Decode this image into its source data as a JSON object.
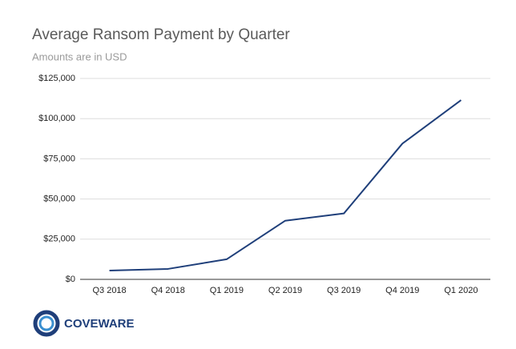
{
  "chart_data": {
    "type": "line",
    "title": "Average Ransom Payment by Quarter",
    "subtitle": "Amounts are in USD",
    "categories": [
      "Q3 2018",
      "Q4 2018",
      "Q1 2019",
      "Q2 2019",
      "Q3 2019",
      "Q4 2019",
      "Q1 2020"
    ],
    "series": [
      {
        "name": "Average Ransom Payment",
        "color": "#1f3f7a",
        "values": [
          5500,
          6500,
          12500,
          36500,
          41000,
          84500,
          111500
        ]
      }
    ],
    "ylim": [
      0,
      125000
    ],
    "yticks": [
      {
        "value": 0,
        "label": "$0"
      },
      {
        "value": 25000,
        "label": "$25,000"
      },
      {
        "value": 50000,
        "label": "$50,000"
      },
      {
        "value": 75000,
        "label": "$75,000"
      },
      {
        "value": 100000,
        "label": "$100,000"
      },
      {
        "value": 125000,
        "label": "$125,000"
      }
    ],
    "grid": true
  },
  "logo": {
    "text": "COVEWARE"
  }
}
